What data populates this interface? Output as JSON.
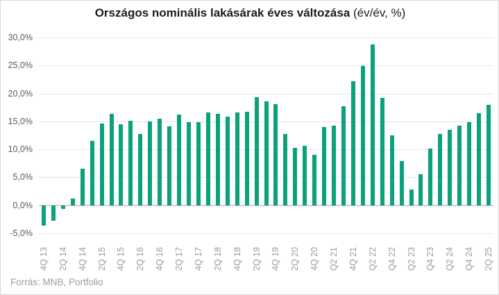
{
  "title": {
    "main": "Országos nominális lakásárak éves változása",
    "suffix": " (év/év, %)"
  },
  "footer": {
    "source_label": "Forrás: MNB, Portfolio"
  },
  "colors": {
    "bar": "#0ba17d",
    "gridline": "#e7e7e7",
    "zero_line": "#d2d2d2",
    "y_axis_text": "#595959",
    "x_axis_text": "#9b9b9b",
    "title_text": "#1a1a1a",
    "source_text": "#9b9b9b"
  },
  "chart_data": {
    "type": "bar",
    "title": "Országos nominális lakásárak éves változása (év/év, %)",
    "xlabel": "",
    "ylabel": "",
    "ylim": [
      -5,
      30
    ],
    "grid": true,
    "legend": false,
    "categories": [
      "4Q 13",
      "1Q 14",
      "2Q 14",
      "3Q 14",
      "4Q 14",
      "1Q 15",
      "2Q 15",
      "3Q 15",
      "4Q 15",
      "1Q 16",
      "2Q 16",
      "3Q 16",
      "4Q 16",
      "1Q 17",
      "2Q 17",
      "3Q 17",
      "4Q 17",
      "1Q 18",
      "2Q 18",
      "3Q 18",
      "4Q 18",
      "1Q 19",
      "2Q 19",
      "3Q 19",
      "4Q 19",
      "1Q 20",
      "2Q 20",
      "3Q 20",
      "4Q 20",
      "1Q 21",
      "Q2 21",
      "3Q 21",
      "4Q 21",
      "1Q 22",
      "Q2 22",
      "3Q 22",
      "Q4 22",
      "1Q 23",
      "Q2 23",
      "3Q 23",
      "Q4 23",
      "1Q 24",
      "Q2 24",
      "3Q 24",
      "Q4 24",
      "1Q 25",
      "2Q 25"
    ],
    "values": [
      -3.6,
      -2.8,
      -0.7,
      1.2,
      6.6,
      11.5,
      14.6,
      16.3,
      14.5,
      15.1,
      12.7,
      15.0,
      15.5,
      14.1,
      16.2,
      14.8,
      14.8,
      16.6,
      16.3,
      15.9,
      16.6,
      16.7,
      19.3,
      18.6,
      18.1,
      12.7,
      10.3,
      10.6,
      9.0,
      14.0,
      14.2,
      17.7,
      22.2,
      24.9,
      28.8,
      19.2,
      12.5,
      7.9,
      2.8,
      5.6,
      10.2,
      12.8,
      13.5,
      14.2,
      14.8,
      16.5,
      18.0
    ],
    "x_tick_labels": [
      "4Q 13",
      "2Q 14",
      "4Q 14",
      "2Q 15",
      "4Q 15",
      "2Q 16",
      "4Q 16",
      "2Q 17",
      "4Q 17",
      "2Q 18",
      "4Q 18",
      "2Q 19",
      "4Q 19",
      "2Q 20",
      "4Q 20",
      "Q2 21",
      "4Q 21",
      "Q2 22",
      "Q4 22",
      "Q2 23",
      "Q4 23",
      "Q2 24",
      "Q4 24",
      "2Q 25"
    ],
    "x_tick_every": 2,
    "y_ticks": [
      "30,0%",
      "25,0%",
      "20,0%",
      "15,0%",
      "10,0%",
      "5,0%",
      "0,0%",
      "-5,0%"
    ],
    "y_tick_values": [
      30,
      25,
      20,
      15,
      10,
      5,
      0,
      -5
    ]
  }
}
